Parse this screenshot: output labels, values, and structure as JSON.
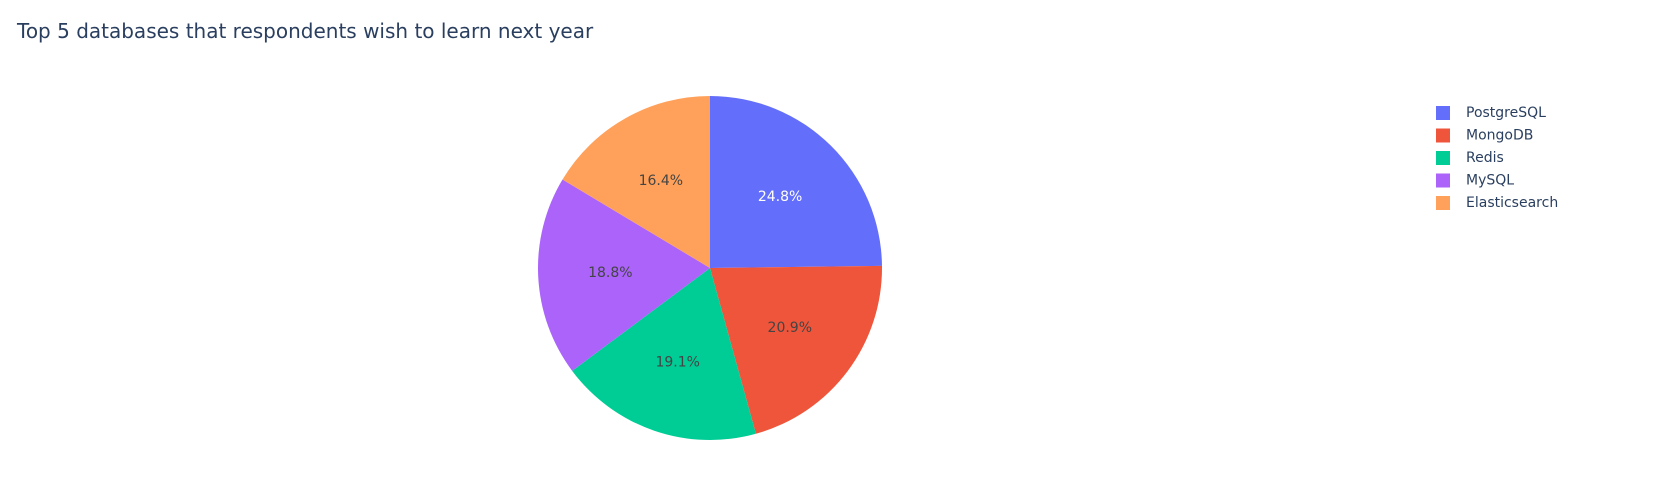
{
  "chart_data": {
    "type": "pie",
    "title": "Top 5 databases that respondents wish to learn next year",
    "categories": [
      "PostgreSQL",
      "MongoDB",
      "Redis",
      "MySQL",
      "Elasticsearch"
    ],
    "values": [
      24.8,
      20.9,
      19.1,
      18.8,
      16.4
    ],
    "labels": [
      "24.8%",
      "20.9%",
      "19.1%",
      "18.8%",
      "16.4%"
    ],
    "colors": [
      "#636efa",
      "#ef553b",
      "#00cc96",
      "#ab63fa",
      "#ffa15a"
    ],
    "label_colors": [
      "#ffffff",
      "#444444",
      "#444444",
      "#444444",
      "#444444"
    ],
    "direction": "counterclockwise",
    "start": "top",
    "legend": {
      "placement": "top-right",
      "items": [
        "PostgreSQL",
        "MongoDB",
        "Redis",
        "MySQL",
        "Elasticsearch"
      ]
    }
  }
}
